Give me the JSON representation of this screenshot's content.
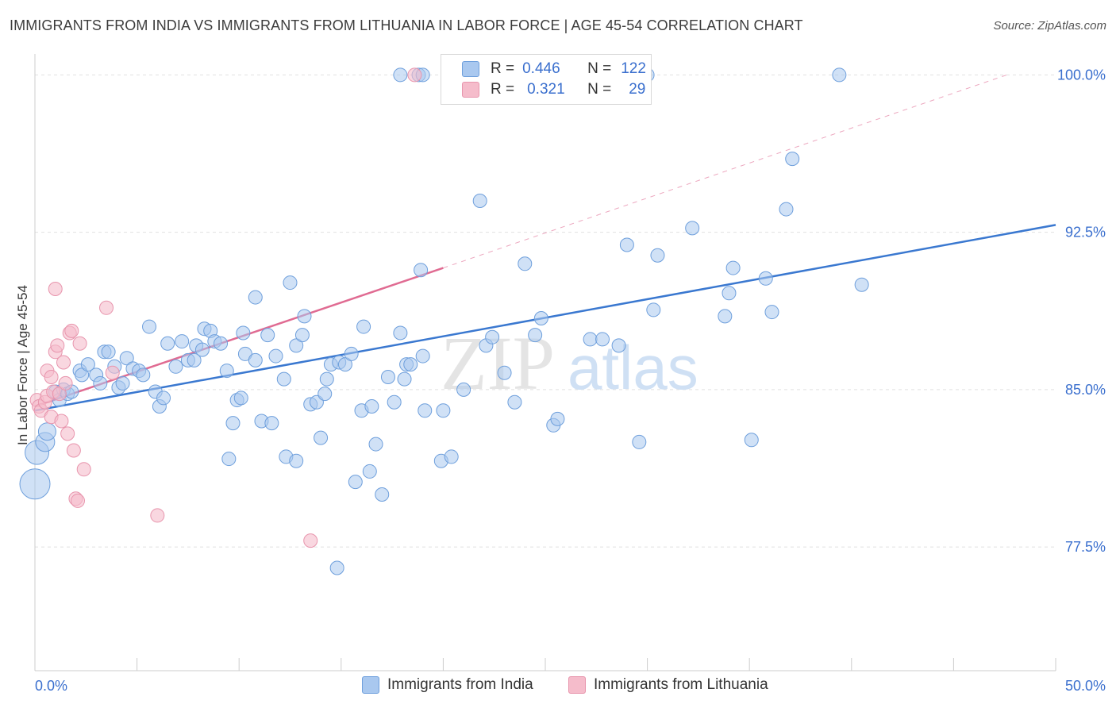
{
  "title": "IMMIGRANTS FROM INDIA VS IMMIGRANTS FROM LITHUANIA IN LABOR FORCE | AGE 45-54 CORRELATION CHART",
  "source": "Source: ZipAtlas.com",
  "watermark": {
    "zip": "ZIP",
    "atlas": "atlas"
  },
  "colors": {
    "india_fill": "#a9c8ef",
    "india_stroke": "#6e9fdc",
    "india_line": "#3a78d0",
    "lithuania_fill": "#f5bccb",
    "lithuania_stroke": "#e895ad",
    "lithuania_line": "#e06b92",
    "axis_label": "#3a6fce",
    "grid": "#e1e1e1"
  },
  "legend": {
    "rows": [
      {
        "r_label": "R =",
        "r_value": "0.446",
        "n_label": "N =",
        "n_value": "122"
      },
      {
        "r_label": "R =",
        "r_value": "0.321",
        "n_label": "N =",
        "n_value": "29"
      }
    ]
  },
  "bottom_legend": {
    "india": "Immigrants from India",
    "lithuania": "Immigrants from Lithuania"
  },
  "chart_data": {
    "type": "scatter",
    "title": "IMMIGRANTS FROM INDIA VS IMMIGRANTS FROM LITHUANIA IN LABOR FORCE | AGE 45-54 CORRELATION CHART",
    "xlabel": "",
    "ylabel": "In Labor Force | Age 45-54",
    "xlim": [
      0,
      50
    ],
    "ylim": [
      71.6,
      101
    ],
    "x_tick_labels": [
      "0.0%",
      "50.0%"
    ],
    "y_ticks": [
      77.5,
      85.0,
      92.5,
      100.0
    ],
    "y_tick_labels": [
      "77.5%",
      "85.0%",
      "92.5%",
      "100.0%"
    ],
    "grid": "horizontal dashed",
    "legend_placement": "top-center",
    "series": [
      {
        "name": "Immigrants from India",
        "r": 0.446,
        "n": 122,
        "trend": {
          "x0": 0.0,
          "y0": 84.0,
          "x1": 50.0,
          "y1": 92.85
        },
        "points": [
          [
            0.0,
            80.5
          ],
          [
            0.1,
            82.0
          ],
          [
            0.5,
            82.5
          ],
          [
            0.6,
            83.0
          ],
          [
            1.0,
            84.9
          ],
          [
            1.2,
            84.5
          ],
          [
            1.4,
            85.0
          ],
          [
            1.6,
            84.8
          ],
          [
            1.8,
            84.9
          ],
          [
            2.2,
            85.9
          ],
          [
            2.3,
            85.7
          ],
          [
            2.6,
            86.2
          ],
          [
            3.0,
            85.7
          ],
          [
            3.2,
            85.3
          ],
          [
            3.4,
            86.8
          ],
          [
            3.6,
            86.8
          ],
          [
            3.9,
            86.1
          ],
          [
            4.1,
            85.1
          ],
          [
            4.3,
            85.3
          ],
          [
            4.5,
            86.5
          ],
          [
            4.8,
            86.0
          ],
          [
            5.1,
            85.9
          ],
          [
            5.3,
            85.7
          ],
          [
            5.6,
            88.0
          ],
          [
            5.9,
            84.9
          ],
          [
            6.1,
            84.2
          ],
          [
            6.3,
            84.6
          ],
          [
            6.5,
            87.2
          ],
          [
            6.9,
            86.1
          ],
          [
            7.2,
            87.3
          ],
          [
            7.5,
            86.4
          ],
          [
            7.8,
            86.4
          ],
          [
            7.9,
            87.1
          ],
          [
            8.2,
            86.9
          ],
          [
            8.3,
            87.9
          ],
          [
            8.6,
            87.8
          ],
          [
            8.8,
            87.3
          ],
          [
            9.1,
            87.2
          ],
          [
            9.4,
            85.9
          ],
          [
            9.5,
            81.7
          ],
          [
            9.7,
            83.4
          ],
          [
            9.9,
            84.5
          ],
          [
            10.1,
            84.6
          ],
          [
            10.2,
            87.7
          ],
          [
            10.3,
            86.7
          ],
          [
            10.8,
            86.4
          ],
          [
            10.8,
            89.4
          ],
          [
            11.1,
            83.5
          ],
          [
            11.4,
            87.6
          ],
          [
            11.6,
            83.4
          ],
          [
            11.8,
            86.6
          ],
          [
            12.2,
            85.5
          ],
          [
            12.3,
            81.8
          ],
          [
            12.5,
            90.1
          ],
          [
            12.8,
            81.6
          ],
          [
            12.8,
            87.1
          ],
          [
            13.1,
            87.6
          ],
          [
            13.2,
            88.5
          ],
          [
            13.5,
            84.3
          ],
          [
            13.8,
            84.4
          ],
          [
            14.0,
            82.7
          ],
          [
            14.2,
            84.8
          ],
          [
            14.3,
            85.5
          ],
          [
            14.5,
            86.2
          ],
          [
            14.9,
            86.3
          ],
          [
            14.8,
            76.5
          ],
          [
            15.2,
            86.2
          ],
          [
            15.5,
            86.7
          ],
          [
            15.7,
            80.6
          ],
          [
            16.0,
            84.0
          ],
          [
            16.1,
            88.0
          ],
          [
            16.4,
            81.1
          ],
          [
            16.5,
            84.2
          ],
          [
            16.7,
            82.4
          ],
          [
            17.0,
            80.0
          ],
          [
            17.3,
            85.6
          ],
          [
            17.6,
            84.4
          ],
          [
            17.9,
            87.7
          ],
          [
            18.1,
            85.5
          ],
          [
            18.2,
            86.2
          ],
          [
            18.4,
            86.2
          ],
          [
            18.9,
            90.7
          ],
          [
            19.0,
            86.6
          ],
          [
            19.1,
            84.0
          ],
          [
            19.9,
            81.6
          ],
          [
            20.0,
            84.0
          ],
          [
            20.4,
            81.8
          ],
          [
            21.0,
            85.0
          ],
          [
            21.8,
            94.0
          ],
          [
            22.1,
            87.1
          ],
          [
            22.4,
            87.5
          ],
          [
            23.0,
            85.8
          ],
          [
            23.5,
            84.4
          ],
          [
            24.0,
            91.0
          ],
          [
            24.5,
            87.6
          ],
          [
            24.8,
            88.4
          ],
          [
            25.4,
            83.3
          ],
          [
            25.6,
            83.6
          ],
          [
            27.2,
            87.4
          ],
          [
            27.8,
            87.4
          ],
          [
            28.6,
            87.1
          ],
          [
            29.0,
            91.9
          ],
          [
            29.6,
            82.5
          ],
          [
            30.0,
            100.0
          ],
          [
            30.3,
            88.8
          ],
          [
            30.5,
            91.4
          ],
          [
            32.2,
            92.7
          ],
          [
            33.8,
            88.5
          ],
          [
            34.0,
            89.6
          ],
          [
            34.2,
            90.8
          ],
          [
            35.1,
            82.6
          ],
          [
            35.8,
            90.3
          ],
          [
            36.1,
            88.7
          ],
          [
            36.8,
            93.6
          ],
          [
            37.1,
            96.0
          ],
          [
            39.4,
            100.0
          ],
          [
            40.5,
            90.0
          ],
          [
            17.9,
            100.0
          ],
          [
            18.8,
            100.0
          ],
          [
            19.0,
            100.0
          ]
        ]
      },
      {
        "name": "Immigrants from Lithuania",
        "r": 0.321,
        "n": 29,
        "trend_solid": {
          "x0": 0.0,
          "y0": 84.2,
          "x1": 20.0,
          "y1": 90.8
        },
        "trend_dashed": {
          "x0": 20.0,
          "y0": 90.8,
          "x1": 47.6,
          "y1": 100.0
        },
        "points": [
          [
            0.1,
            84.5
          ],
          [
            0.2,
            84.2
          ],
          [
            0.3,
            84.0
          ],
          [
            0.5,
            84.4
          ],
          [
            0.6,
            84.7
          ],
          [
            0.6,
            85.9
          ],
          [
            0.8,
            85.6
          ],
          [
            0.8,
            83.7
          ],
          [
            0.9,
            84.9
          ],
          [
            1.0,
            86.8
          ],
          [
            1.1,
            87.1
          ],
          [
            1.0,
            89.8
          ],
          [
            1.2,
            84.8
          ],
          [
            1.3,
            83.5
          ],
          [
            1.4,
            86.3
          ],
          [
            1.5,
            85.3
          ],
          [
            1.6,
            82.9
          ],
          [
            1.7,
            87.7
          ],
          [
            1.8,
            87.8
          ],
          [
            1.9,
            82.1
          ],
          [
            2.0,
            79.8
          ],
          [
            2.1,
            79.7
          ],
          [
            2.2,
            87.2
          ],
          [
            2.4,
            81.2
          ],
          [
            3.5,
            88.9
          ],
          [
            3.8,
            85.8
          ],
          [
            6.0,
            79.0
          ],
          [
            13.5,
            77.8
          ],
          [
            18.6,
            100.0
          ]
        ]
      }
    ]
  }
}
